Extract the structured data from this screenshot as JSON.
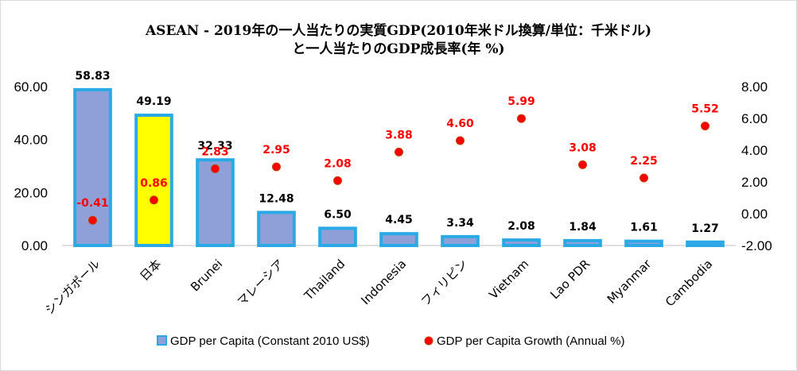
{
  "chart_data": {
    "type": "bar",
    "title": "ASEAN - 2019年の一人当たりの実質GDP(2010年米ドル換算/単位：千米ドル)",
    "subtitle": "と一人当たりのGDP成長率(年 %)",
    "categories": [
      "シンガポール",
      "日本",
      "Brunei",
      "マレーシア",
      "Thailand",
      "Indonesia",
      "フィリピン",
      "Vietnam",
      "Lao PDR",
      "Myanmar",
      "Cambodia"
    ],
    "series": [
      {
        "name": "GDP per Capita (Constant 2010 US$)",
        "type": "bar",
        "axis": "left",
        "values": [
          58.83,
          49.19,
          32.33,
          12.48,
          6.5,
          4.45,
          3.34,
          2.08,
          1.84,
          1.61,
          1.27
        ],
        "labels": [
          "58.83",
          "49.19",
          "32.33",
          "12.48",
          "6.50",
          "4.45",
          "3.34",
          "2.08",
          "1.84",
          "1.61",
          "1.27"
        ],
        "color": "#8fa0d8",
        "border": "#29a9e6",
        "highlight": {
          "index": 1,
          "color": "#ffff00"
        }
      },
      {
        "name": "GDP per Capita Growth (Annual %)",
        "type": "scatter",
        "axis": "right",
        "values": [
          -0.41,
          0.86,
          2.83,
          2.95,
          2.08,
          3.88,
          4.6,
          5.99,
          3.08,
          2.25,
          5.52
        ],
        "labels": [
          "-0.41",
          "0.86",
          "2.83",
          "2.95",
          "2.08",
          "3.88",
          "4.60",
          "5.99",
          "3.08",
          "2.25",
          "5.52"
        ],
        "color": "#ff0000"
      }
    ],
    "y_left": {
      "min": 0,
      "max": 60,
      "ticks": [
        "0.00",
        "20.00",
        "40.00",
        "60.00"
      ]
    },
    "y_right": {
      "min": -2,
      "max": 8,
      "ticks": [
        "-2.00",
        "0.00",
        "2.00",
        "4.00",
        "6.00",
        "8.00"
      ]
    },
    "grid": false,
    "legend_position": "bottom"
  }
}
